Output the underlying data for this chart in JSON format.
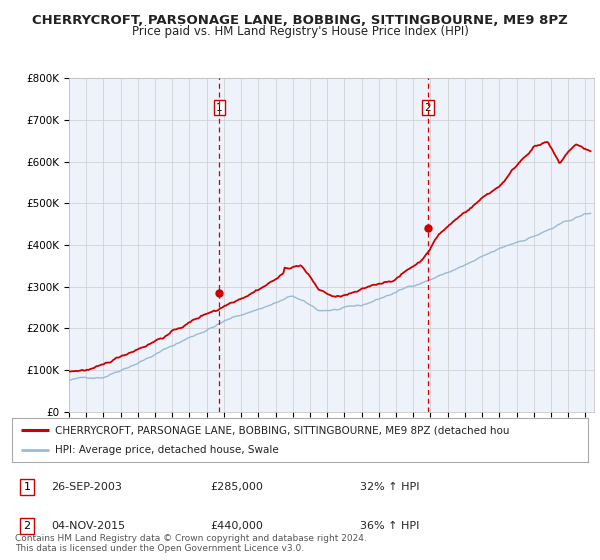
{
  "title": "CHERRYCROFT, PARSONAGE LANE, BOBBING, SITTINGBOURNE, ME9 8PZ",
  "subtitle": "Price paid vs. HM Land Registry's House Price Index (HPI)",
  "ylim": [
    0,
    800000
  ],
  "yticks": [
    0,
    100000,
    200000,
    300000,
    400000,
    500000,
    600000,
    700000,
    800000
  ],
  "ytick_labels": [
    "£0",
    "£100K",
    "£200K",
    "£300K",
    "£400K",
    "£500K",
    "£600K",
    "£700K",
    "£800K"
  ],
  "xlim_start": 1995.0,
  "xlim_end": 2025.5,
  "background_color": "#ffffff",
  "plot_bg_color": "#eef2fb",
  "grid_color": "#cccccc",
  "red_line_color": "#cc0000",
  "blue_line_color": "#99bbd4",
  "vline_color": "#cc0000",
  "marker_color": "#cc0000",
  "sale1_x": 2003.74,
  "sale1_y": 285000,
  "sale1_label": "1",
  "sale1_date": "26-SEP-2003",
  "sale1_price": "£285,000",
  "sale1_hpi": "32% ↑ HPI",
  "sale2_x": 2015.84,
  "sale2_y": 440000,
  "sale2_label": "2",
  "sale2_date": "04-NOV-2015",
  "sale2_price": "£440,000",
  "sale2_hpi": "36% ↑ HPI",
  "legend_red_label": "CHERRYCROFT, PARSONAGE LANE, BOBBING, SITTINGBOURNE, ME9 8PZ (detached hou",
  "legend_blue_label": "HPI: Average price, detached house, Swale",
  "footnote": "Contains HM Land Registry data © Crown copyright and database right 2024.\nThis data is licensed under the Open Government Licence v3.0.",
  "title_fontsize": 9.5,
  "subtitle_fontsize": 8.5,
  "tick_fontsize": 7.5,
  "legend_fontsize": 7.5,
  "table_fontsize": 8.0,
  "footnote_fontsize": 6.5
}
